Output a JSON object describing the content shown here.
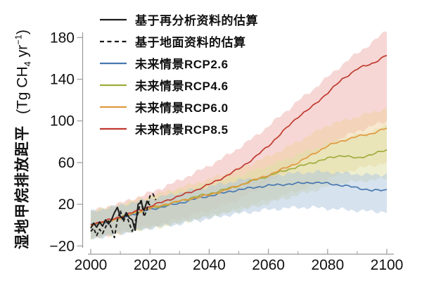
{
  "figure": {
    "background": "#ffffff",
    "ylabel": {
      "text_cn": "湿地甲烷排放距平",
      "unit_prefix": "(Tg CH",
      "unit_sub": "4",
      "unit_mid": " yr",
      "unit_sup": "−1",
      "unit_suffix": ")"
    }
  },
  "chart_data": {
    "type": "line",
    "title": "",
    "xlabel": "",
    "ylabel": "湿地甲烷排放距平 (Tg CH4 yr−1)",
    "xlim": [
      1997,
      2102
    ],
    "ylim": [
      -28,
      200
    ],
    "x_ticks_major": [
      2000,
      2020,
      2040,
      2060,
      2080,
      2100
    ],
    "x_ticks_minor": [
      2010,
      2030,
      2050,
      2070,
      2090
    ],
    "y_ticks": [
      -20,
      20,
      60,
      100,
      140,
      180
    ],
    "grid": false,
    "legend_position": "upper-left-inside",
    "colors": {
      "axis": "#9a9a9a",
      "text": "#111111"
    },
    "series": [
      {
        "id": "reanalysis",
        "label": "基于再分析资料的估算",
        "color": "#1c1c1c",
        "line_style": "solid",
        "x": [
          2000,
          2001,
          2002,
          2003,
          2004,
          2005,
          2006,
          2007,
          2008,
          2009,
          2010,
          2011,
          2012,
          2013,
          2014,
          2015,
          2016,
          2017,
          2018,
          2019,
          2020
        ],
        "values": [
          -3,
          2,
          -2,
          3,
          -1,
          5,
          1,
          5,
          12,
          17,
          8,
          6,
          12,
          7,
          5,
          -5,
          20,
          22,
          14,
          23,
          19
        ]
      },
      {
        "id": "ground",
        "label": "基于地面资料的估算",
        "color": "#1c1c1c",
        "line_style": "dashed",
        "x": [
          2000,
          2001,
          2002,
          2003,
          2004,
          2005,
          2006,
          2007,
          2008,
          2009,
          2010,
          2011,
          2012,
          2013,
          2014,
          2015,
          2016,
          2017,
          2018,
          2019,
          2020,
          2021,
          2022
        ],
        "values": [
          -6,
          -3,
          -10,
          -4,
          -8,
          -2,
          4,
          -3,
          -12,
          5,
          14,
          3,
          10,
          2,
          -6,
          3,
          12,
          25,
          8,
          15,
          28,
          30,
          24
        ]
      },
      {
        "id": "rcp26",
        "label": "未来情景RCP2.6",
        "color": "#4878b0",
        "band_color": "#aec6de",
        "line_style": "solid",
        "x": [
          2000,
          2005,
          2010,
          2015,
          2020,
          2025,
          2030,
          2035,
          2040,
          2045,
          2050,
          2055,
          2060,
          2065,
          2070,
          2075,
          2080,
          2085,
          2090,
          2095,
          2100
        ],
        "values": [
          0,
          3,
          7,
          11,
          15,
          18,
          21,
          25,
          28,
          31,
          34,
          36,
          38,
          39,
          40,
          41,
          40,
          38,
          36,
          33,
          34
        ],
        "band_low": [
          -13,
          -11,
          -8,
          -6,
          -3,
          -1,
          1,
          4,
          6,
          9,
          11,
          13,
          15,
          16,
          17,
          17,
          16,
          15,
          14,
          13,
          13
        ],
        "band_high": [
          13,
          16,
          19,
          22,
          25,
          28,
          31,
          34,
          37,
          40,
          43,
          45,
          47,
          49,
          50,
          51,
          51,
          50,
          49,
          48,
          49
        ]
      },
      {
        "id": "rcp46",
        "label": "未来情景RCP4.6",
        "color": "#a0ad3e",
        "band_color": "#dde0a4",
        "line_style": "solid",
        "x": [
          2000,
          2005,
          2010,
          2015,
          2020,
          2025,
          2030,
          2035,
          2040,
          2045,
          2050,
          2055,
          2060,
          2065,
          2070,
          2075,
          2080,
          2085,
          2090,
          2095,
          2100
        ],
        "values": [
          0,
          3,
          7,
          12,
          16,
          19,
          23,
          27,
          30,
          34,
          38,
          43,
          47,
          52,
          56,
          60,
          64,
          67,
          64,
          68,
          72
        ],
        "band_low": [
          -13,
          -10,
          -8,
          -5,
          -3,
          -1,
          2,
          5,
          8,
          11,
          14,
          17,
          21,
          25,
          29,
          33,
          37,
          40,
          42,
          43,
          45
        ],
        "band_high": [
          13,
          16,
          19,
          23,
          26,
          30,
          33,
          37,
          40,
          44,
          48,
          52,
          57,
          62,
          68,
          73,
          78,
          83,
          86,
          90,
          95
        ]
      },
      {
        "id": "rcp60",
        "label": "未来情景RCP6.0",
        "color": "#e09a40",
        "band_color": "#f0d2a0",
        "line_style": "solid",
        "x": [
          2000,
          2005,
          2010,
          2015,
          2020,
          2025,
          2030,
          2035,
          2040,
          2045,
          2050,
          2055,
          2060,
          2065,
          2070,
          2075,
          2080,
          2085,
          2090,
          2095,
          2100
        ],
        "values": [
          0,
          3,
          7,
          12,
          16,
          20,
          23,
          26,
          29,
          33,
          38,
          43,
          48,
          54,
          60,
          68,
          76,
          81,
          85,
          88,
          93
        ],
        "band_low": [
          -13,
          -10,
          -8,
          -5,
          -2,
          0,
          3,
          6,
          9,
          12,
          16,
          20,
          24,
          28,
          33,
          38,
          45,
          50,
          54,
          57,
          60
        ],
        "band_high": [
          13,
          16,
          20,
          24,
          28,
          32,
          36,
          40,
          44,
          49,
          54,
          60,
          66,
          73,
          80,
          88,
          96,
          100,
          104,
          108,
          112
        ]
      },
      {
        "id": "rcp85",
        "label": "未来情景RCP8.5",
        "color": "#c03a30",
        "band_color": "#edb0ac",
        "line_style": "solid",
        "x": [
          2000,
          2005,
          2010,
          2015,
          2020,
          2025,
          2030,
          2035,
          2040,
          2045,
          2050,
          2055,
          2060,
          2065,
          2070,
          2075,
          2080,
          2085,
          2090,
          2095,
          2100
        ],
        "values": [
          1,
          4,
          8,
          13,
          18,
          23,
          28,
          33,
          39,
          46,
          54,
          64,
          76,
          90,
          104,
          114,
          127,
          140,
          150,
          155,
          163
        ],
        "band_low": [
          -13,
          -10,
          -7,
          -4,
          -1,
          2,
          6,
          10,
          14,
          19,
          25,
          32,
          40,
          50,
          60,
          68,
          76,
          84,
          90,
          95,
          100
        ],
        "band_high": [
          13,
          17,
          21,
          26,
          31,
          37,
          43,
          50,
          57,
          65,
          74,
          84,
          95,
          107,
          119,
          130,
          142,
          154,
          165,
          175,
          187
        ]
      }
    ]
  }
}
